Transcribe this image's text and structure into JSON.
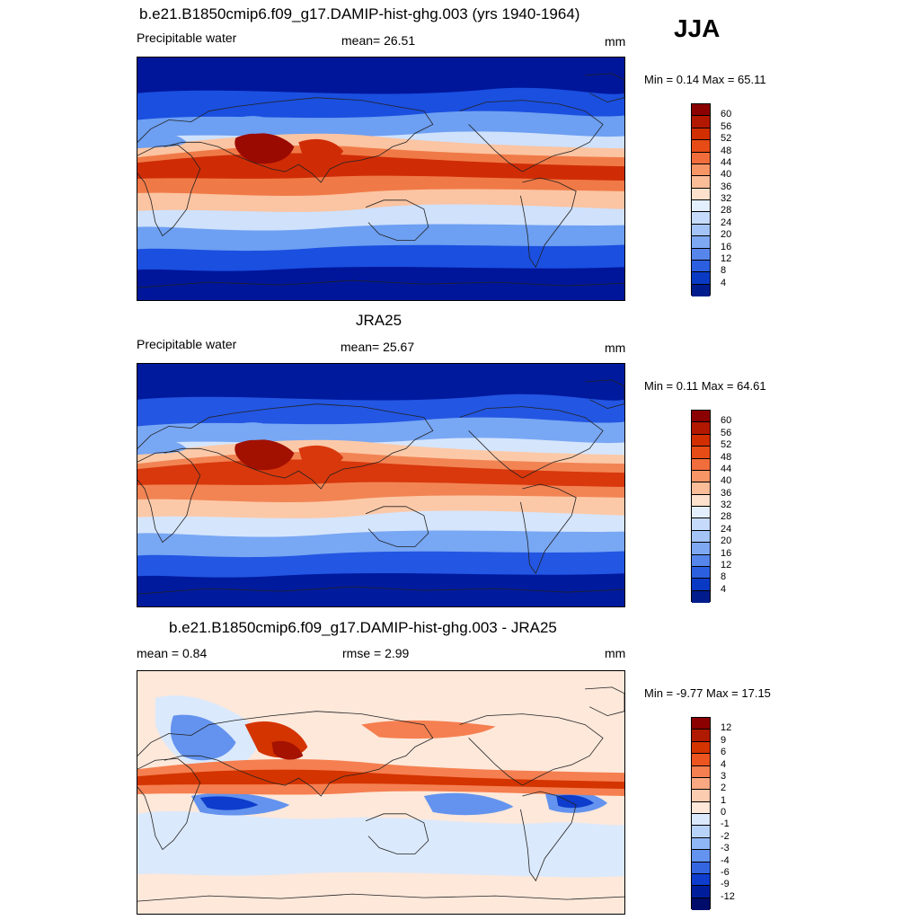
{
  "season": "JJA",
  "panels": [
    {
      "title": "b.e21.B1850cmip6.f09_g17.DAMIP-hist-ghg.003 (yrs 1940-1964)",
      "left_label": "Precipitable water",
      "center_label": "mean=  26.51",
      "units": "mm",
      "minmax": "Min =   0.14 Max =  65.11",
      "colorbar": {
        "labels": [
          "60",
          "56",
          "52",
          "48",
          "44",
          "40",
          "36",
          "32",
          "28",
          "24",
          "20",
          "16",
          "12",
          "8",
          "4"
        ],
        "colors": [
          "#8b0000",
          "#b21800",
          "#d12f00",
          "#e84c16",
          "#f26d3c",
          "#f89566",
          "#fbbc98",
          "#fde1cc",
          "#e3effc",
          "#c6dbfb",
          "#a4c4f8",
          "#7fa8f3",
          "#5686eb",
          "#2c5fdf",
          "#0a3ac4",
          "#001c8c"
        ]
      },
      "map_colors": {
        "polar": "#00169a",
        "mid": "#1a4fe0",
        "sub": "#6d9ff2",
        "light": "#cfe1fb",
        "warm1": "#fbc4a2",
        "warm2": "#f07a47",
        "hot": "#cf2c06",
        "peak": "#9a0a00"
      }
    },
    {
      "title": "JRA25",
      "left_label": "Precipitable water",
      "center_label": "mean=  25.67",
      "units": "mm",
      "minmax": "Min =   0.11 Max =  64.61",
      "colorbar": {
        "labels": [
          "60",
          "56",
          "52",
          "48",
          "44",
          "40",
          "36",
          "32",
          "28",
          "24",
          "20",
          "16",
          "12",
          "8",
          "4"
        ],
        "colors": [
          "#8b0000",
          "#b21800",
          "#d12f00",
          "#e84c16",
          "#f26d3c",
          "#f89566",
          "#fbbc98",
          "#fde1cc",
          "#e3effc",
          "#c6dbfb",
          "#a4c4f8",
          "#7fa8f3",
          "#5686eb",
          "#2c5fdf",
          "#0a3ac4",
          "#001c8c"
        ]
      },
      "map_colors": {
        "polar": "#001a9e",
        "mid": "#2356e2",
        "sub": "#78a7f4",
        "light": "#d5e5fc",
        "warm1": "#fcc9a8",
        "warm2": "#f28454",
        "hot": "#d8380c",
        "peak": "#a21000"
      }
    },
    {
      "title": "b.e21.B1850cmip6.f09_g17.DAMIP-hist-ghg.003 - JRA25",
      "left_label": "mean =   0.84",
      "center_label": "rmse =   2.99",
      "units": "mm",
      "minmax": "Min =  -9.77 Max =  17.15",
      "colorbar": {
        "labels": [
          "12",
          "9",
          "6",
          "4",
          "3",
          "2",
          "1",
          "0",
          "-1",
          "-2",
          "-3",
          "-4",
          "-6",
          "-9",
          "-12"
        ],
        "colors": [
          "#8b0000",
          "#b01a00",
          "#d43400",
          "#ec5420",
          "#f57f50",
          "#f9a882",
          "#fcccb0",
          "#fde8da",
          "#dbe9fc",
          "#b8d3fa",
          "#8fb6f6",
          "#6393ee",
          "#3566e2",
          "#0e3ccc",
          "#001e9c",
          "#000c6a"
        ]
      },
      "map_colors": {
        "bg": "#fde8da",
        "light_blue": "#dbe9fc",
        "blue": "#6393ee",
        "deep_blue": "#0e3ccc",
        "orange": "#f57f50",
        "red": "#d43400",
        "dark_red": "#a51200"
      }
    }
  ]
}
